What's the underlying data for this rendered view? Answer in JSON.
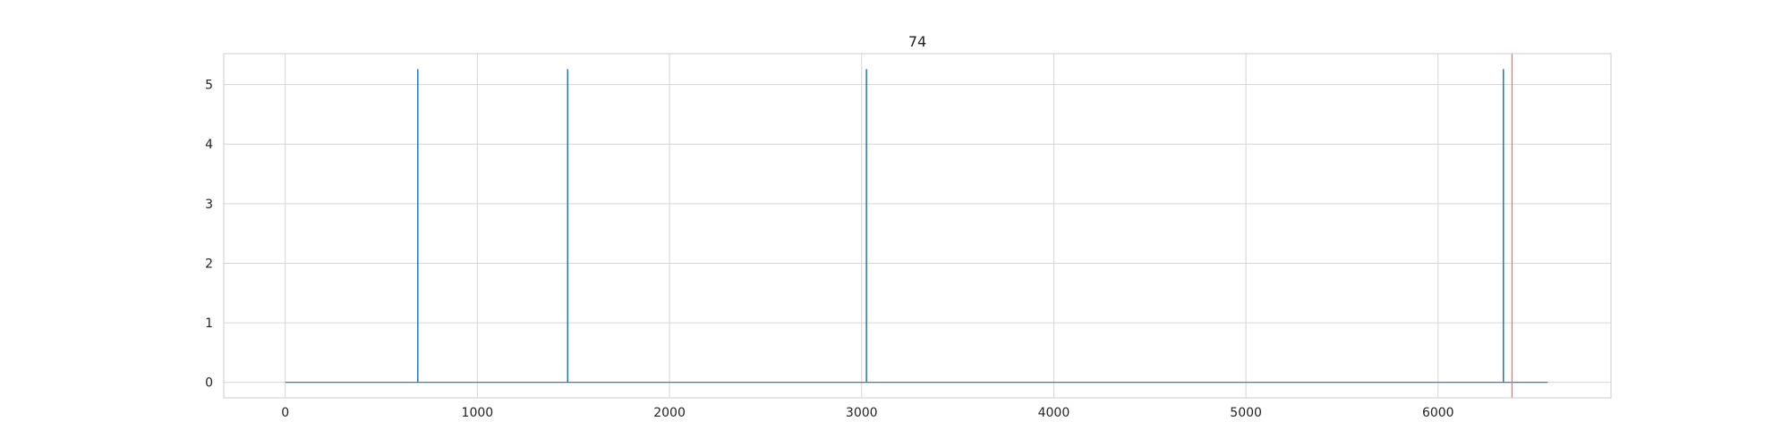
{
  "chart_data": {
    "type": "line",
    "title": "74",
    "xlabel": "",
    "ylabel": "",
    "xlim": [
      -320,
      6900
    ],
    "ylim": [
      -0.26,
      5.52
    ],
    "x_ticks": [
      0,
      1000,
      2000,
      3000,
      4000,
      5000,
      6000
    ],
    "y_ticks": [
      0,
      1,
      2,
      3,
      4,
      5
    ],
    "grid": true,
    "series": [
      {
        "color": "#1f77b4",
        "x_range": [
          0,
          6570
        ],
        "baseline": 0,
        "spikes": [
          {
            "x": 690,
            "y": 5.26
          },
          {
            "x": 1470,
            "y": 5.26
          },
          {
            "x": 3025,
            "y": 5.26
          },
          {
            "x": 6340,
            "y": 5.26
          }
        ]
      }
    ],
    "vlines": [
      {
        "x": 6385,
        "color": "#ff6b6b"
      }
    ]
  }
}
